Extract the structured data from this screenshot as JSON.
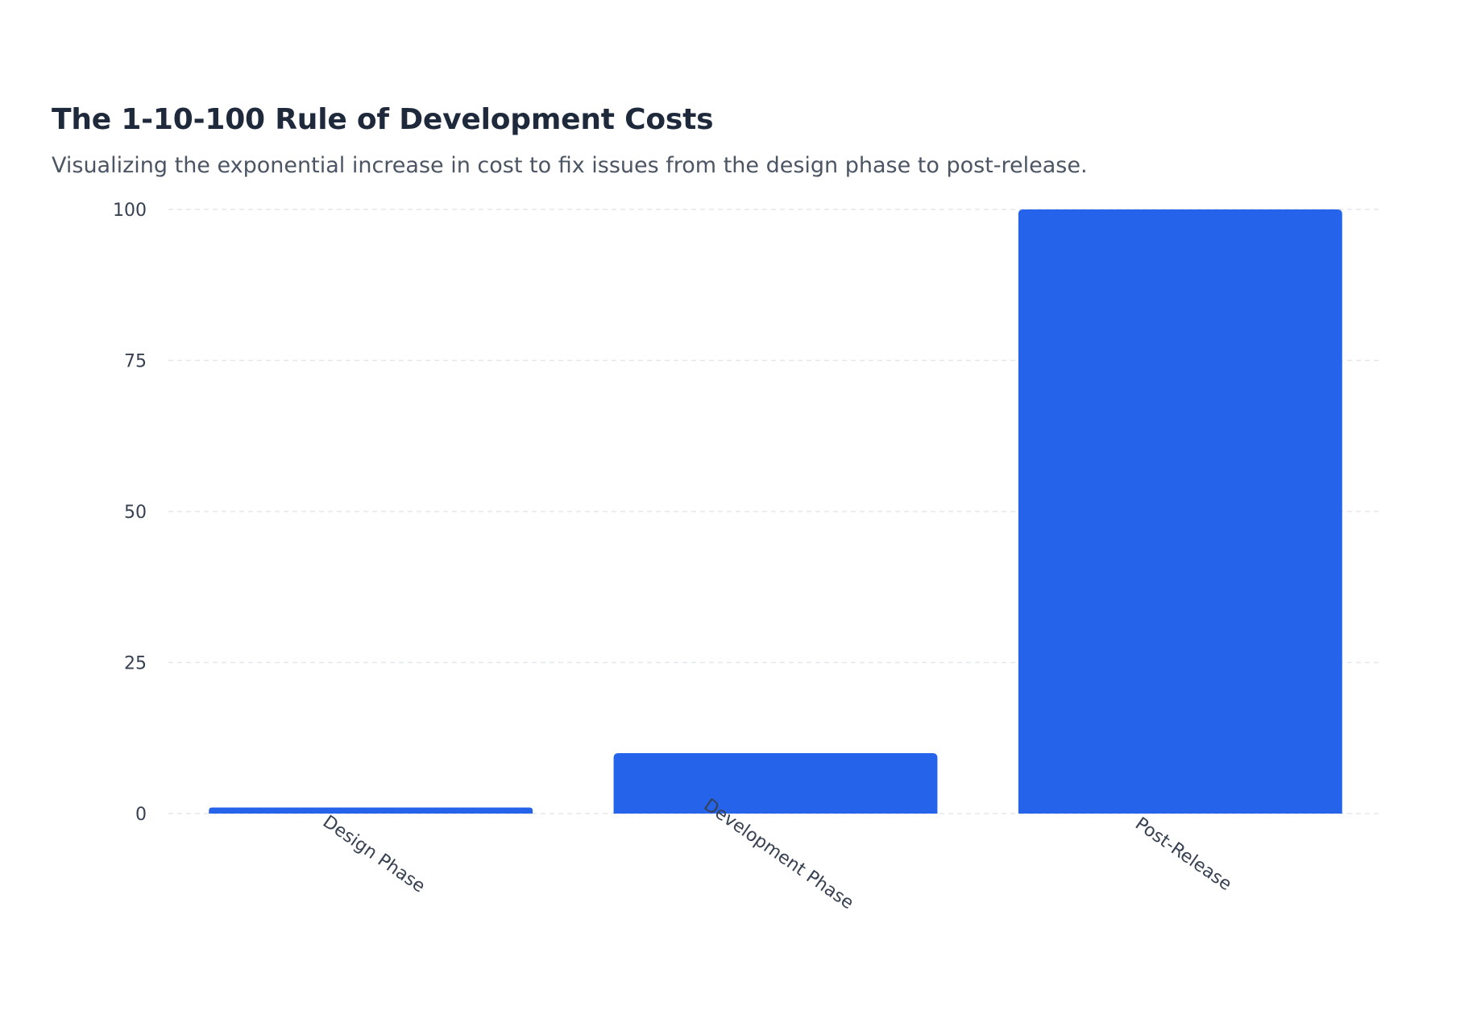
{
  "chart_data": {
    "type": "bar",
    "title": "The 1-10-100 Rule of Development Costs",
    "subtitle": "Visualizing the exponential increase in cost to fix issues from the design phase to post-release.",
    "categories": [
      "Design Phase",
      "Development Phase",
      "Post-Release"
    ],
    "values": [
      1,
      10,
      100
    ],
    "xlabel": "",
    "ylabel": "",
    "ylim": [
      0,
      100
    ],
    "yticks": [
      0,
      25,
      50,
      75,
      100
    ],
    "grid": true,
    "bar_color": "#2563eb",
    "grid_color": "#e5e7eb"
  }
}
